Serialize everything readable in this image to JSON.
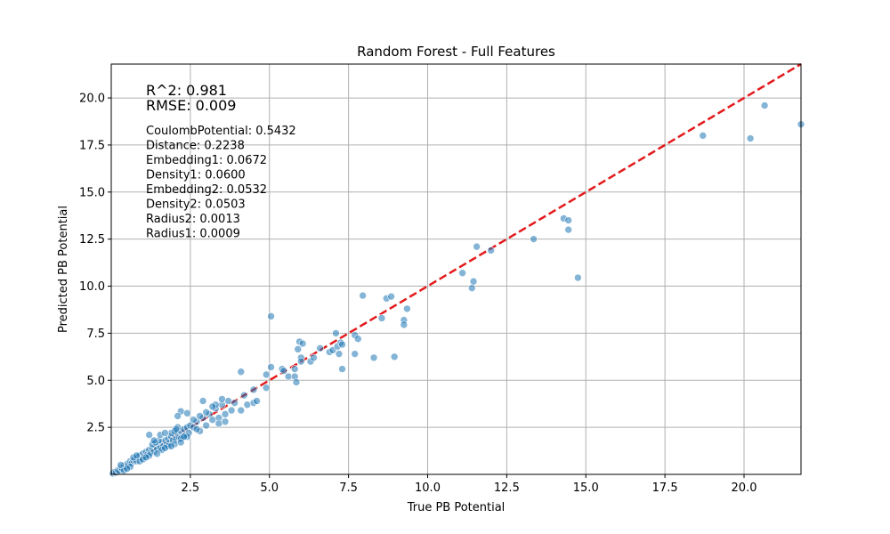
{
  "chart_data": {
    "type": "scatter",
    "title": "Random Forest - Full Features",
    "xlabel": "True PB Potential",
    "ylabel": "Predicted PB Potential",
    "xlim": [
      0.0,
      21.8
    ],
    "ylim": [
      0.0,
      21.8
    ],
    "xticks": [
      "2.5",
      "5.0",
      "7.5",
      "10.0",
      "12.5",
      "15.0",
      "17.5",
      "20.0"
    ],
    "yticks": [
      "2.5",
      "5.0",
      "7.5",
      "10.0",
      "12.5",
      "15.0",
      "17.5",
      "20.0"
    ],
    "grid": true,
    "point_color": "#1f77b4",
    "reference_line": {
      "style": "dashed",
      "color": "#e31a1c",
      "from": [
        0,
        0
      ],
      "to": [
        21.8,
        21.8
      ]
    },
    "metrics": [
      "R^2: 0.981",
      "RMSE: 0.009"
    ],
    "feature_importances": [
      "CoulombPotential: 0.5432",
      "Distance: 0.2238",
      "Embedding1: 0.0672",
      "Density1: 0.0600",
      "Embedding2: 0.0532",
      "Density2: 0.0503",
      "Radius2: 0.0013",
      "Radius1: 0.0009"
    ],
    "points": [
      [
        0.05,
        0.05
      ],
      [
        0.1,
        0.12
      ],
      [
        0.15,
        0.1
      ],
      [
        0.2,
        0.22
      ],
      [
        0.25,
        0.2
      ],
      [
        0.3,
        0.35
      ],
      [
        0.35,
        0.3
      ],
      [
        0.4,
        0.45
      ],
      [
        0.45,
        0.4
      ],
      [
        0.5,
        0.55
      ],
      [
        0.55,
        0.5
      ],
      [
        0.6,
        0.7
      ],
      [
        0.65,
        0.6
      ],
      [
        0.7,
        0.75
      ],
      [
        0.75,
        0.8
      ],
      [
        0.8,
        0.7
      ],
      [
        0.85,
        0.9
      ],
      [
        0.9,
        1.0
      ],
      [
        0.95,
        0.85
      ],
      [
        1.0,
        1.1
      ],
      [
        1.05,
        0.95
      ],
      [
        1.1,
        1.2
      ],
      [
        1.15,
        1.05
      ],
      [
        1.2,
        1.3
      ],
      [
        1.25,
        1.15
      ],
      [
        1.3,
        1.4
      ],
      [
        1.35,
        1.2
      ],
      [
        1.4,
        1.5
      ],
      [
        1.45,
        1.35
      ],
      [
        1.5,
        1.6
      ],
      [
        1.55,
        1.4
      ],
      [
        1.6,
        1.7
      ],
      [
        1.65,
        1.5
      ],
      [
        1.7,
        1.8
      ],
      [
        1.75,
        1.6
      ],
      [
        1.8,
        1.9
      ],
      [
        1.85,
        1.7
      ],
      [
        1.9,
        2.0
      ],
      [
        1.95,
        1.8
      ],
      [
        2.0,
        2.1
      ],
      [
        2.05,
        1.85
      ],
      [
        2.1,
        2.2
      ],
      [
        2.15,
        1.95
      ],
      [
        2.2,
        2.3
      ],
      [
        2.25,
        2.0
      ],
      [
        2.3,
        2.4
      ],
      [
        2.35,
        2.1
      ],
      [
        2.4,
        2.5
      ],
      [
        2.45,
        2.2
      ],
      [
        2.5,
        2.6
      ],
      [
        0.3,
        0.5
      ],
      [
        0.6,
        0.4
      ],
      [
        0.9,
        0.7
      ],
      [
        1.2,
        1.0
      ],
      [
        1.5,
        1.8
      ],
      [
        1.8,
        1.5
      ],
      [
        2.1,
        2.5
      ],
      [
        2.4,
        2.0
      ],
      [
        0.4,
        0.2
      ],
      [
        0.7,
        0.9
      ],
      [
        1.0,
        0.8
      ],
      [
        1.3,
        1.6
      ],
      [
        1.6,
        1.3
      ],
      [
        1.9,
        2.2
      ],
      [
        2.2,
        1.9
      ],
      [
        0.5,
        0.3
      ],
      [
        0.8,
        1.0
      ],
      [
        1.1,
        0.9
      ],
      [
        1.4,
        1.7
      ],
      [
        1.7,
        1.4
      ],
      [
        2.0,
        2.3
      ],
      [
        2.3,
        2.0
      ],
      [
        1.55,
        2.1
      ],
      [
        1.7,
        2.2
      ],
      [
        2.0,
        1.6
      ],
      [
        2.2,
        1.7
      ],
      [
        1.35,
        1.8
      ],
      [
        1.9,
        1.5
      ],
      [
        2.05,
        2.4
      ],
      [
        1.45,
        1.1
      ],
      [
        1.2,
        2.1
      ],
      [
        2.2,
        3.35
      ],
      [
        2.1,
        3.1
      ],
      [
        2.4,
        3.25
      ],
      [
        2.6,
        2.5
      ],
      [
        2.7,
        2.8
      ],
      [
        2.8,
        2.3
      ],
      [
        2.9,
        3.0
      ],
      [
        3.0,
        2.6
      ],
      [
        3.1,
        3.2
      ],
      [
        3.2,
        2.9
      ],
      [
        3.3,
        3.5
      ],
      [
        3.4,
        3.0
      ],
      [
        3.5,
        3.7
      ],
      [
        3.6,
        3.2
      ],
      [
        3.7,
        3.9
      ],
      [
        3.8,
        3.4
      ],
      [
        2.9,
        3.9
      ],
      [
        3.5,
        4.0
      ],
      [
        3.3,
        3.7
      ],
      [
        2.6,
        2.9
      ],
      [
        2.8,
        3.1
      ],
      [
        3.0,
        3.3
      ],
      [
        3.2,
        3.6
      ],
      [
        3.4,
        2.7
      ],
      [
        3.6,
        2.8
      ],
      [
        2.7,
        2.4
      ],
      [
        3.9,
        3.8
      ],
      [
        4.1,
        3.4
      ],
      [
        4.2,
        4.2
      ],
      [
        4.3,
        3.7
      ],
      [
        4.5,
        3.8
      ],
      [
        4.6,
        3.9
      ],
      [
        4.5,
        4.5
      ],
      [
        4.9,
        4.6
      ],
      [
        4.9,
        5.3
      ],
      [
        5.05,
        5.7
      ],
      [
        5.4,
        5.6
      ],
      [
        5.45,
        5.5
      ],
      [
        5.6,
        5.2
      ],
      [
        4.1,
        5.45
      ],
      [
        5.05,
        8.4
      ],
      [
        5.8,
        5.2
      ],
      [
        5.85,
        4.9
      ],
      [
        5.8,
        5.6
      ],
      [
        5.9,
        6.65
      ],
      [
        6.0,
        6.2
      ],
      [
        6.0,
        6.0
      ],
      [
        5.95,
        7.05
      ],
      [
        6.05,
        6.95
      ],
      [
        6.3,
        6.0
      ],
      [
        6.4,
        6.2
      ],
      [
        6.6,
        6.7
      ],
      [
        6.9,
        6.5
      ],
      [
        7.0,
        6.6
      ],
      [
        7.1,
        7.5
      ],
      [
        7.15,
        6.8
      ],
      [
        7.2,
        6.4
      ],
      [
        7.25,
        7.0
      ],
      [
        7.3,
        5.6
      ],
      [
        7.3,
        6.9
      ],
      [
        7.7,
        6.4
      ],
      [
        7.7,
        7.4
      ],
      [
        7.8,
        7.2
      ],
      [
        7.95,
        9.5
      ],
      [
        8.3,
        6.2
      ],
      [
        8.55,
        8.3
      ],
      [
        8.7,
        9.35
      ],
      [
        8.85,
        9.45
      ],
      [
        8.95,
        6.25
      ],
      [
        9.25,
        8.2
      ],
      [
        9.25,
        7.95
      ],
      [
        9.35,
        8.8
      ],
      [
        11.1,
        10.7
      ],
      [
        11.4,
        9.9
      ],
      [
        11.45,
        10.25
      ],
      [
        11.55,
        12.1
      ],
      [
        12.0,
        11.9
      ],
      [
        13.35,
        12.5
      ],
      [
        14.3,
        13.6
      ],
      [
        14.45,
        13.5
      ],
      [
        14.45,
        13.0
      ],
      [
        14.75,
        10.45
      ],
      [
        18.7,
        18.0
      ],
      [
        20.2,
        17.85
      ],
      [
        20.65,
        19.6
      ],
      [
        21.8,
        18.6
      ]
    ]
  }
}
